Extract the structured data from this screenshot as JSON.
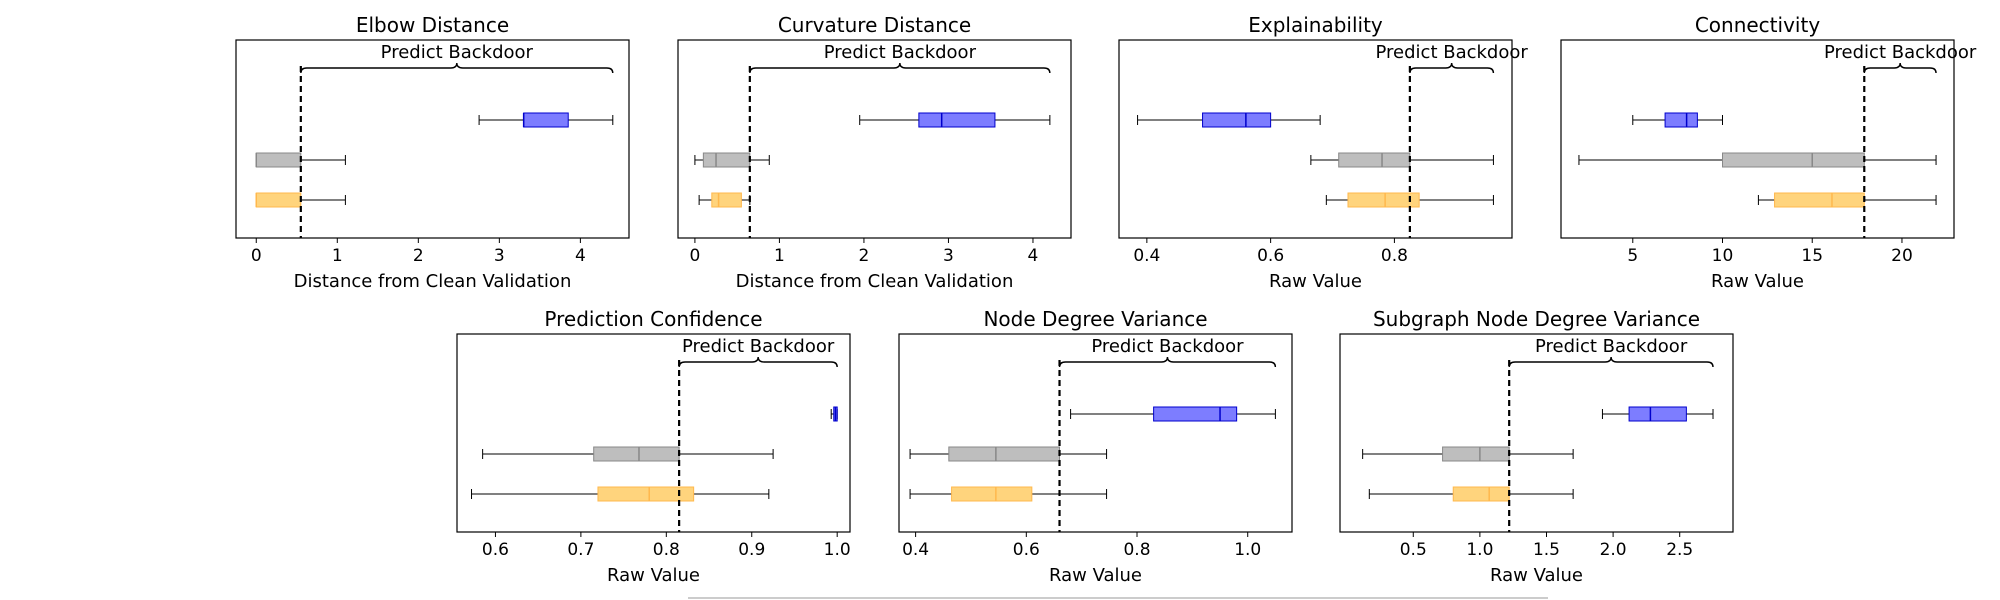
{
  "figure": {
    "annotation_label": "Predict Backdoor",
    "legend_fragment_color": "#cccccc"
  },
  "colors": {
    "blue": "#6666ff",
    "blue_edge": "#0000cc",
    "gray": "#b3b3b3",
    "gray_edge": "#888888",
    "orange": "#ffcc66",
    "orange_edge": "#ffb84d",
    "whisker": "#000000",
    "threshold": "#000000"
  },
  "chart_data": [
    {
      "type": "boxplot",
      "title": "Elbow Distance",
      "xlabel": "Distance from Clean Validation",
      "ylabel": "",
      "xlim": [
        -0.25,
        4.6
      ],
      "xticks": [
        0,
        1,
        2,
        3,
        4
      ],
      "xticklabels": [
        "0",
        "1",
        "2",
        "3",
        "4"
      ],
      "threshold": 0.55,
      "annotation": "Predict Backdoor",
      "bracket": [
        0.55,
        4.4
      ],
      "boxes": [
        {
          "color": "blue",
          "whislo": 2.75,
          "q1": 3.3,
          "med": 3.3,
          "q3": 3.85,
          "whishi": 4.4
        },
        {
          "color": "gray",
          "whislo": 0.0,
          "q1": 0.0,
          "med": 0.0,
          "q3": 0.55,
          "whishi": 1.1
        },
        {
          "color": "orange",
          "whislo": 0.0,
          "q1": 0.0,
          "med": 0.0,
          "q3": 0.55,
          "whishi": 1.1
        }
      ]
    },
    {
      "type": "boxplot",
      "title": "Curvature Distance",
      "xlabel": "Distance from Clean Validation",
      "ylabel": "",
      "xlim": [
        -0.2,
        4.45
      ],
      "xticks": [
        0,
        1,
        2,
        3,
        4
      ],
      "xticklabels": [
        "0",
        "1",
        "2",
        "3",
        "4"
      ],
      "threshold": 0.65,
      "annotation": "Predict Backdoor",
      "bracket": [
        0.65,
        4.2
      ],
      "boxes": [
        {
          "color": "blue",
          "whislo": 1.95,
          "q1": 2.65,
          "med": 2.92,
          "q3": 3.55,
          "whishi": 4.2
        },
        {
          "color": "gray",
          "whislo": 0.0,
          "q1": 0.1,
          "med": 0.25,
          "q3": 0.65,
          "whishi": 0.88
        },
        {
          "color": "orange",
          "whislo": 0.05,
          "q1": 0.2,
          "med": 0.28,
          "q3": 0.55,
          "whishi": 0.65
        }
      ]
    },
    {
      "type": "boxplot",
      "title": "Explainability",
      "xlabel": "Raw Value",
      "ylabel": "",
      "xlim": [
        0.355,
        0.99
      ],
      "xticks": [
        0.4,
        0.6,
        0.8
      ],
      "xticklabels": [
        "0.4",
        "0.6",
        "0.8"
      ],
      "threshold": 0.825,
      "annotation": "Predict Backdoor",
      "bracket": [
        0.825,
        0.96
      ],
      "boxes": [
        {
          "color": "blue",
          "whislo": 0.385,
          "q1": 0.49,
          "med": 0.56,
          "q3": 0.6,
          "whishi": 0.68
        },
        {
          "color": "gray",
          "whislo": 0.665,
          "q1": 0.71,
          "med": 0.78,
          "q3": 0.825,
          "whishi": 0.96
        },
        {
          "color": "orange",
          "whislo": 0.69,
          "q1": 0.725,
          "med": 0.785,
          "q3": 0.84,
          "whishi": 0.96
        }
      ]
    },
    {
      "type": "boxplot",
      "title": "Connectivity",
      "xlabel": "Raw Value",
      "ylabel": "",
      "xlim": [
        1.0,
        22.9
      ],
      "xticks": [
        5,
        10,
        15,
        20
      ],
      "xticklabels": [
        "5",
        "10",
        "15",
        "20"
      ],
      "threshold": 17.9,
      "annotation": "Predict Backdoor",
      "bracket": [
        17.9,
        21.9
      ],
      "boxes": [
        {
          "color": "blue",
          "whislo": 5.0,
          "q1": 6.8,
          "med": 8.0,
          "q3": 8.6,
          "whishi": 10.0
        },
        {
          "color": "gray",
          "whislo": 2.0,
          "q1": 10.0,
          "med": 15.0,
          "q3": 17.9,
          "whishi": 21.9
        },
        {
          "color": "orange",
          "whislo": 12.0,
          "q1": 12.9,
          "med": 16.1,
          "q3": 17.9,
          "whishi": 21.9
        }
      ]
    },
    {
      "type": "boxplot",
      "title": "Prediction Confidence",
      "xlabel": "Raw Value",
      "ylabel": "",
      "xlim": [
        0.555,
        1.015
      ],
      "xticks": [
        0.6,
        0.7,
        0.8,
        0.9,
        1.0
      ],
      "xticklabels": [
        "0.6",
        "0.7",
        "0.8",
        "0.9",
        "1.0"
      ],
      "threshold": 0.815,
      "annotation": "Predict Backdoor",
      "bracket": [
        0.815,
        1.0
      ],
      "boxes": [
        {
          "color": "blue",
          "whislo": 0.993,
          "q1": 0.996,
          "med": 0.998,
          "q3": 1.0,
          "whishi": 1.0
        },
        {
          "color": "gray",
          "whislo": 0.585,
          "q1": 0.715,
          "med": 0.768,
          "q3": 0.815,
          "whishi": 0.925
        },
        {
          "color": "orange",
          "whislo": 0.572,
          "q1": 0.72,
          "med": 0.78,
          "q3": 0.832,
          "whishi": 0.92
        }
      ]
    },
    {
      "type": "boxplot",
      "title": "Node Degree Variance",
      "xlabel": "Raw Value",
      "ylabel": "",
      "xlim": [
        0.37,
        1.08
      ],
      "xticks": [
        0.4,
        0.6,
        0.8,
        1.0
      ],
      "xticklabels": [
        "0.4",
        "0.6",
        "0.8",
        "1.0"
      ],
      "threshold": 0.66,
      "annotation": "Predict Backdoor",
      "bracket": [
        0.66,
        1.05
      ],
      "boxes": [
        {
          "color": "blue",
          "whislo": 0.68,
          "q1": 0.83,
          "med": 0.95,
          "q3": 0.98,
          "whishi": 1.05
        },
        {
          "color": "gray",
          "whislo": 0.39,
          "q1": 0.46,
          "med": 0.545,
          "q3": 0.66,
          "whishi": 0.745
        },
        {
          "color": "orange",
          "whislo": 0.39,
          "q1": 0.465,
          "med": 0.545,
          "q3": 0.61,
          "whishi": 0.745
        }
      ]
    },
    {
      "type": "boxplot",
      "title": "Subgraph Node Degree Variance",
      "xlabel": "Raw Value",
      "ylabel": "",
      "xlim": [
        -0.05,
        2.9
      ],
      "xticks": [
        0.5,
        1.0,
        1.5,
        2.0,
        2.5
      ],
      "xticklabels": [
        "0.5",
        "1.0",
        "1.5",
        "2.0",
        "2.5"
      ],
      "threshold": 1.22,
      "annotation": "Predict Backdoor",
      "bracket": [
        1.22,
        2.75
      ],
      "boxes": [
        {
          "color": "blue",
          "whislo": 1.92,
          "q1": 2.12,
          "med": 2.28,
          "q3": 2.55,
          "whishi": 2.75
        },
        {
          "color": "gray",
          "whislo": 0.12,
          "q1": 0.72,
          "med": 1.0,
          "q3": 1.22,
          "whishi": 1.7
        },
        {
          "color": "orange",
          "whislo": 0.17,
          "q1": 0.8,
          "med": 1.07,
          "q3": 1.22,
          "whishi": 1.7
        }
      ]
    }
  ]
}
